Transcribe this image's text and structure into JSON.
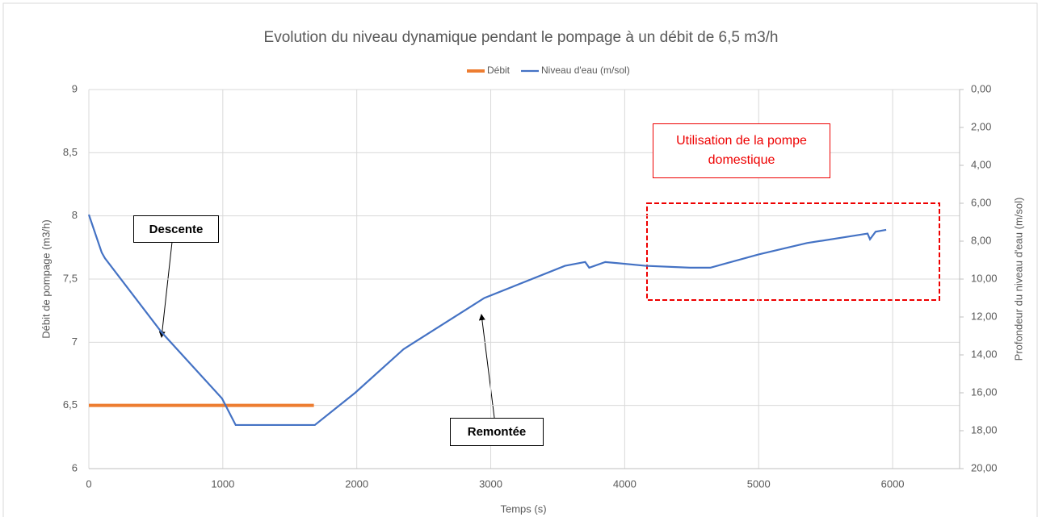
{
  "chart_data": {
    "type": "line",
    "title": "Evolution du niveau dynamique pendant le pompage à un débit de 6,5 m3/h",
    "xlabel": "Temps (s)",
    "ylabel": "Débit de pompage (m3/h)",
    "y2label": "Profondeur du niveau d'eau (m/sol)",
    "xlim": [
      0,
      6500
    ],
    "xticks": [
      0,
      1000,
      2000,
      3000,
      4000,
      5000,
      6000
    ],
    "ylim": [
      6,
      9
    ],
    "yticks": [
      6,
      {
        "value": 6.5,
        "label": "6,5"
      },
      7,
      {
        "value": 7.5,
        "label": "7,5"
      },
      8,
      {
        "value": 8.5,
        "label": "8,5"
      },
      9
    ],
    "y2lim": [
      20,
      0
    ],
    "y2ticks": [
      {
        "value": 0,
        "label": "0,00"
      },
      {
        "value": 2,
        "label": "2,00"
      },
      {
        "value": 4,
        "label": "4,00"
      },
      {
        "value": 6,
        "label": "6,00"
      },
      {
        "value": 8,
        "label": "8,00"
      },
      {
        "value": 10,
        "label": "10,00"
      },
      {
        "value": 12,
        "label": "12,00"
      },
      {
        "value": 14,
        "label": "14,00"
      },
      {
        "value": 16,
        "label": "16,00"
      },
      {
        "value": 18,
        "label": "18,00"
      },
      {
        "value": 20,
        "label": "20,00"
      }
    ],
    "grid": true,
    "legend": "top",
    "series": [
      {
        "name": "Débit",
        "color": "#ed7d31",
        "x": [
          0,
          1680
        ],
        "values": [
          6.5,
          6.5
        ]
      },
      {
        "name": "Niveau d'eau (m/sol)",
        "color": "#4472c4",
        "axis": "y2",
        "x": [
          0,
          96,
          120,
          542,
          994,
          1096,
          1687,
          1988,
          2349,
          2952,
          3554,
          3705,
          3735,
          3855,
          4157,
          4488,
          4639,
          5000,
          5361,
          5723,
          5813,
          5831,
          5873,
          5952
        ],
        "values": [
          6.6,
          8.6,
          8.9,
          12.8,
          16.3,
          17.7,
          17.7,
          16.0,
          13.7,
          11.0,
          9.3,
          9.1,
          9.4,
          9.1,
          9.3,
          9.4,
          9.4,
          8.7,
          8.1,
          7.7,
          7.6,
          7.9,
          7.5,
          7.4
        ]
      }
    ],
    "annotations": [
      "Descente",
      "Remontée",
      "Utilisation de la pompe domestique"
    ]
  }
}
